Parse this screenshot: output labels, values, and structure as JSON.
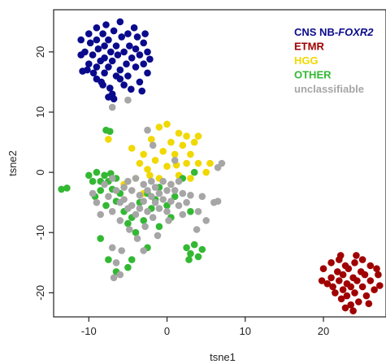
{
  "chart_data": {
    "type": "scatter",
    "title": "",
    "xlabel": "tsne1",
    "ylabel": "tsne2",
    "xlim": [
      -14.5,
      28
    ],
    "ylim": [
      -24,
      27
    ],
    "xticks": [
      -10,
      0,
      10,
      20
    ],
    "yticks": [
      -20,
      -10,
      0,
      10,
      20
    ],
    "grid": false,
    "legend_position": "top-right",
    "series": [
      {
        "name": "CNS NB-",
        "name_italic": "FOXR2",
        "color": "#0a0a8c",
        "points": [
          [
            -11,
            22
          ],
          [
            -10.5,
            20
          ],
          [
            -10,
            23
          ],
          [
            -10,
            18
          ],
          [
            -9.8,
            21.5
          ],
          [
            -9.5,
            19.5
          ],
          [
            -9.4,
            16.5
          ],
          [
            -9,
            24
          ],
          [
            -9,
            22
          ],
          [
            -9,
            17.5
          ],
          [
            -8.8,
            20.5
          ],
          [
            -8.5,
            18.5
          ],
          [
            -8.4,
            15
          ],
          [
            -8.2,
            23
          ],
          [
            -8,
            21
          ],
          [
            -8,
            19
          ],
          [
            -8,
            16.5
          ],
          [
            -7.8,
            24.5
          ],
          [
            -7.5,
            22
          ],
          [
            -7.5,
            17.5
          ],
          [
            -7.3,
            14
          ],
          [
            -7.2,
            20
          ],
          [
            -7,
            18.5
          ],
          [
            -7,
            13
          ],
          [
            -6.8,
            23.5
          ],
          [
            -6.5,
            21
          ],
          [
            -6.5,
            16
          ],
          [
            -6.3,
            19.5
          ],
          [
            -6,
            25
          ],
          [
            -6,
            17
          ],
          [
            -5.8,
            22.5
          ],
          [
            -5.5,
            14.5
          ],
          [
            -5.5,
            20
          ],
          [
            -5.2,
            18
          ],
          [
            -5,
            23
          ],
          [
            -5,
            16
          ],
          [
            -4.8,
            21
          ],
          [
            -4.5,
            19
          ],
          [
            -4.2,
            24
          ],
          [
            -4,
            17.5
          ],
          [
            -4,
            20.5
          ],
          [
            -3.8,
            22.5
          ],
          [
            -3.5,
            15
          ],
          [
            -3.5,
            19.5
          ],
          [
            -3,
            21.5
          ],
          [
            -3,
            18
          ],
          [
            -2.8,
            23
          ],
          [
            -2.5,
            20
          ],
          [
            -2.5,
            16.5
          ],
          [
            -7.5,
            12.5
          ],
          [
            -8.2,
            14.5
          ],
          [
            -9,
            15.5
          ],
          [
            -6,
            15.5
          ],
          [
            -10.2,
            17
          ],
          [
            -11,
            19.5
          ],
          [
            -10.8,
            16.8
          ],
          [
            -2.2,
            18.8
          ],
          [
            -3.2,
            13.5
          ],
          [
            -4.6,
            13.8
          ],
          [
            -6.8,
            12.2
          ]
        ]
      },
      {
        "name": "ETMR",
        "color": "#a00000",
        "points": [
          [
            20,
            -16
          ],
          [
            20.5,
            -18.5
          ],
          [
            21,
            -15
          ],
          [
            21,
            -17.5
          ],
          [
            21.5,
            -20
          ],
          [
            21.8,
            -16.5
          ],
          [
            22,
            -18
          ],
          [
            22,
            -14.5
          ],
          [
            22.3,
            -21
          ],
          [
            22.5,
            -19.5
          ],
          [
            22.5,
            -17
          ],
          [
            22.8,
            -15.5
          ],
          [
            23,
            -18.5
          ],
          [
            23,
            -20.5
          ],
          [
            23.2,
            -16
          ],
          [
            23.5,
            -22
          ],
          [
            23.5,
            -19
          ],
          [
            23.8,
            -17.5
          ],
          [
            24,
            -15
          ],
          [
            24,
            -20
          ],
          [
            24.3,
            -18
          ],
          [
            24.5,
            -21.5
          ],
          [
            24.8,
            -16.5
          ],
          [
            25,
            -19
          ],
          [
            25,
            -14.5
          ],
          [
            25.3,
            -17
          ],
          [
            25.5,
            -20.5
          ],
          [
            26,
            -18
          ],
          [
            26,
            -15.5
          ],
          [
            26.5,
            -19.5
          ],
          [
            27,
            -17
          ],
          [
            27.2,
            -18.8
          ],
          [
            21.2,
            -19
          ],
          [
            22.8,
            -22.5
          ],
          [
            25.8,
            -21.8
          ],
          [
            19.8,
            -18
          ],
          [
            24.2,
            -13.8
          ],
          [
            26.8,
            -16
          ],
          [
            22.2,
            -13.8
          ],
          [
            23.8,
            -23
          ]
        ]
      },
      {
        "name": "HGG",
        "color": "#f0d800",
        "points": [
          [
            -7.5,
            5.5
          ],
          [
            -5.5,
            -2
          ],
          [
            -4.5,
            4
          ],
          [
            -4,
            -1
          ],
          [
            -3.5,
            1.5
          ],
          [
            -3,
            3
          ],
          [
            -3,
            -3.5
          ],
          [
            -2.5,
            0.5
          ],
          [
            -2,
            5.5
          ],
          [
            -1.5,
            2
          ],
          [
            -1,
            7.5
          ],
          [
            -1,
            -1
          ],
          [
            -0.5,
            3.5
          ],
          [
            0,
            8
          ],
          [
            0,
            1
          ],
          [
            0.5,
            5
          ],
          [
            0.5,
            -2
          ],
          [
            1,
            3
          ],
          [
            1.5,
            6.5
          ],
          [
            1.5,
            -0.5
          ],
          [
            2,
            4.5
          ],
          [
            2.5,
            1.5
          ],
          [
            2.5,
            6
          ],
          [
            3,
            3
          ],
          [
            3,
            -1
          ],
          [
            3.5,
            5
          ],
          [
            4,
            6
          ],
          [
            4,
            1.5
          ],
          [
            5,
            0
          ],
          [
            5.5,
            1.5
          ],
          [
            -2.2,
            -0.5
          ],
          [
            1.2,
            1.2
          ]
        ]
      },
      {
        "name": "OTHER",
        "color": "#33b833",
        "points": [
          [
            -13.5,
            -2.8
          ],
          [
            -12.8,
            -2.6
          ],
          [
            -10,
            -0.5
          ],
          [
            -9.5,
            -1.5
          ],
          [
            -9.2,
            -4
          ],
          [
            -9,
            0
          ],
          [
            -8.5,
            -1.5
          ],
          [
            -8.5,
            -3
          ],
          [
            -8,
            -0.5
          ],
          [
            -7.8,
            -5.5
          ],
          [
            -7.5,
            -1.5
          ],
          [
            -7.2,
            -0.2
          ],
          [
            -7,
            -2.8
          ],
          [
            -6.5,
            -1
          ],
          [
            -6.5,
            -4.8
          ],
          [
            -6,
            -3.5
          ],
          [
            -5.5,
            -6.5
          ],
          [
            -5,
            -8.5
          ],
          [
            -4.5,
            -7.5
          ],
          [
            -4,
            -10
          ],
          [
            -3.5,
            -5
          ],
          [
            -3,
            -8
          ],
          [
            -2.5,
            -3.5
          ],
          [
            -2,
            -6
          ],
          [
            -1.5,
            -4.5
          ],
          [
            -1,
            -9
          ],
          [
            -1,
            -2.5
          ],
          [
            0,
            -5.5
          ],
          [
            0.5,
            -7.5
          ],
          [
            1,
            -4
          ],
          [
            2,
            -1
          ],
          [
            3,
            -6.5
          ],
          [
            3.5,
            0
          ],
          [
            2.5,
            -12.5
          ],
          [
            3,
            -13.5
          ],
          [
            3.5,
            -12
          ],
          [
            4,
            -14
          ],
          [
            4.5,
            -12.8
          ],
          [
            2.8,
            -14.5
          ],
          [
            -7.5,
            -14.5
          ],
          [
            -8.5,
            -11
          ],
          [
            -7.8,
            7
          ],
          [
            -7.3,
            6.8
          ],
          [
            -5,
            -15.8
          ],
          [
            -6.5,
            -16.5
          ],
          [
            -4.5,
            -14.5
          ],
          [
            -2.5,
            -12.5
          ]
        ]
      },
      {
        "name": "unclassifiable",
        "color": "#a6a6a6",
        "points": [
          [
            -9.5,
            -3.5
          ],
          [
            -9,
            -5
          ],
          [
            -8.5,
            -7
          ],
          [
            -8,
            -2
          ],
          [
            -7.5,
            -4
          ],
          [
            -7,
            -6.5
          ],
          [
            -7,
            -1
          ],
          [
            -6.5,
            -3
          ],
          [
            -6,
            -5
          ],
          [
            -6,
            -8
          ],
          [
            -5.5,
            -2.5
          ],
          [
            -5.5,
            -4.5
          ],
          [
            -5,
            -6
          ],
          [
            -5,
            -1.5
          ],
          [
            -4.8,
            -9.5
          ],
          [
            -4.5,
            -3
          ],
          [
            -4.5,
            -5.5
          ],
          [
            -4,
            -7
          ],
          [
            -4,
            -1
          ],
          [
            -3.8,
            -11
          ],
          [
            -3.5,
            -3.8
          ],
          [
            -3.5,
            -6
          ],
          [
            -3,
            -2
          ],
          [
            -3,
            -4.8
          ],
          [
            -2.8,
            -9
          ],
          [
            -2.5,
            -3
          ],
          [
            -2.5,
            -6.5
          ],
          [
            -2,
            -1.5
          ],
          [
            -2,
            -4
          ],
          [
            -1.8,
            -7.5
          ],
          [
            -1.5,
            -2.5
          ],
          [
            -1.5,
            -5
          ],
          [
            -1,
            -3.5
          ],
          [
            -1,
            -6
          ],
          [
            -0.5,
            -1.5
          ],
          [
            -0.5,
            -4.5
          ],
          [
            0,
            -3
          ],
          [
            0,
            -6.5
          ],
          [
            0.5,
            -2
          ],
          [
            0.5,
            -4.8
          ],
          [
            1,
            -3
          ],
          [
            1.5,
            -5.5
          ],
          [
            1.5,
            -1.5
          ],
          [
            2,
            -3.5
          ],
          [
            2.5,
            -5
          ],
          [
            3,
            -3.8
          ],
          [
            4,
            -6.5
          ],
          [
            5,
            -8
          ],
          [
            6,
            -5
          ],
          [
            6.5,
            -4.8
          ],
          [
            -7,
            10.8
          ],
          [
            -5,
            12
          ],
          [
            -5.8,
            -13
          ],
          [
            -6.5,
            -15
          ],
          [
            -6,
            -17
          ],
          [
            -7,
            -12.5
          ],
          [
            -6.8,
            -17.5
          ],
          [
            -2.5,
            7
          ],
          [
            -1.8,
            4.5
          ],
          [
            1,
            2
          ],
          [
            2,
            -7
          ],
          [
            3.8,
            -9.5
          ],
          [
            6.5,
            0.8
          ],
          [
            7,
            1.5
          ],
          [
            -3,
            -13
          ],
          [
            -1.2,
            -10.5
          ],
          [
            0.2,
            -8
          ],
          [
            4.5,
            -4
          ]
        ]
      }
    ]
  }
}
